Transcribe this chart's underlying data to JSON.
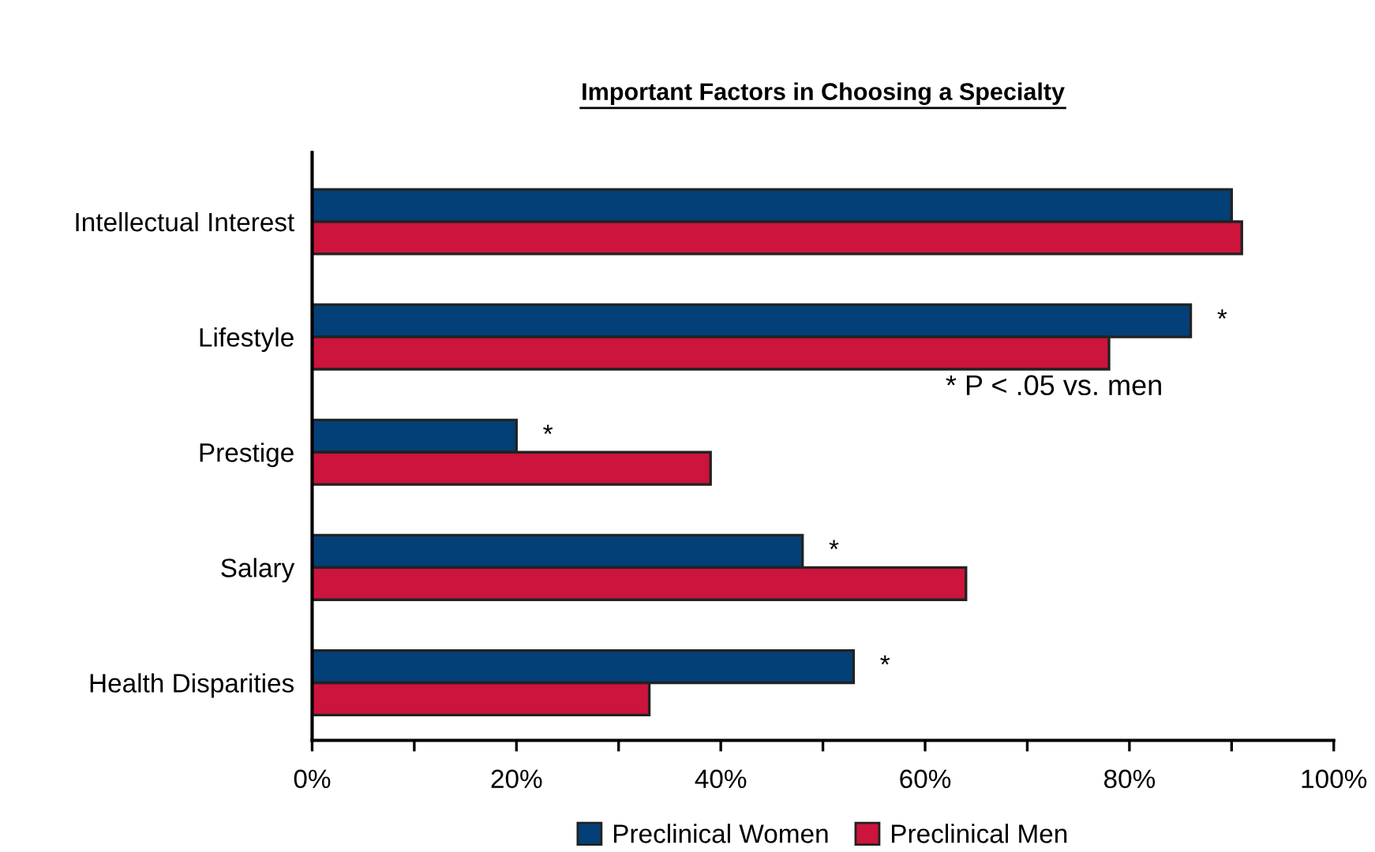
{
  "chart_data": {
    "type": "bar",
    "orientation": "horizontal",
    "title": "Important Factors in Choosing a Specialty",
    "categories": [
      "Intellectual Interest",
      "Lifestyle",
      "Prestige",
      "Salary",
      "Health Disparities"
    ],
    "series": [
      {
        "name": "Preclinical Women",
        "color": "#034078",
        "values": [
          90,
          86,
          20,
          48,
          53
        ]
      },
      {
        "name": "Preclinical Men",
        "color": "#cc143c",
        "values": [
          91,
          78,
          39,
          64,
          33
        ]
      }
    ],
    "xlim": [
      0,
      100
    ],
    "xticks": [
      {
        "value": 0,
        "label": "0%"
      },
      {
        "value": 10,
        "label": null
      },
      {
        "value": 20,
        "label": "20%"
      },
      {
        "value": 30,
        "label": null
      },
      {
        "value": 40,
        "label": "40%"
      },
      {
        "value": 50,
        "label": null
      },
      {
        "value": 60,
        "label": "60%"
      },
      {
        "value": 70,
        "label": null
      },
      {
        "value": 80,
        "label": "80%"
      },
      {
        "value": 90,
        "label": null
      },
      {
        "value": 100,
        "label": "100%"
      }
    ],
    "annotations": [
      {
        "text": "*",
        "x": 86,
        "y": "Lifestyle"
      },
      {
        "text": "*",
        "x": 20,
        "y": "Prestige"
      },
      {
        "text": "*",
        "x": 48,
        "y": "Salary"
      },
      {
        "text": "*",
        "x": 53,
        "y": "Health Disparities"
      },
      "* P < .05 vs. men"
    ],
    "legend": "bottom",
    "grid": false
  }
}
